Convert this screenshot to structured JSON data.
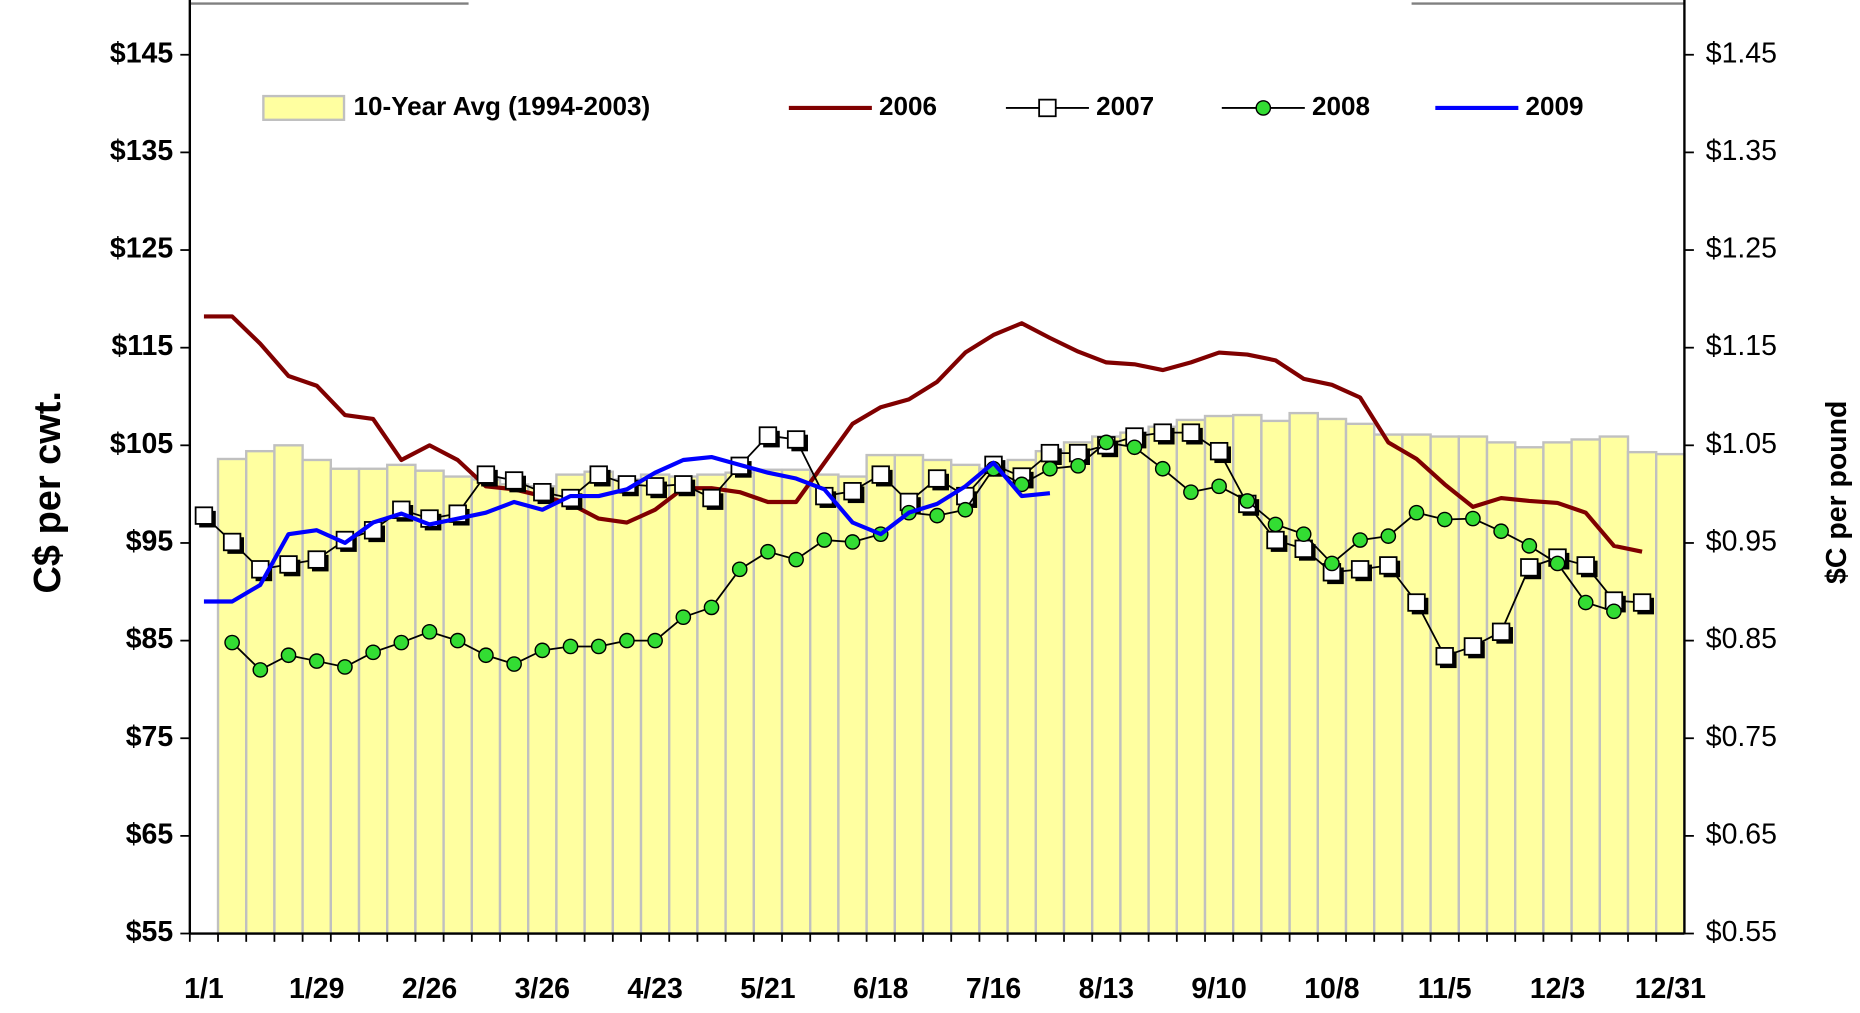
{
  "chart_data": {
    "type": "combo",
    "y_label": "C$ per cwt.",
    "y2_label": "$C per pound",
    "categories": [
      "1/1",
      null,
      null,
      null,
      "1/29",
      null,
      null,
      null,
      "2/26",
      null,
      null,
      null,
      "3/26",
      null,
      null,
      null,
      "4/23",
      null,
      null,
      null,
      "5/21",
      null,
      null,
      null,
      "6/18",
      null,
      null,
      null,
      "7/16",
      null,
      null,
      null,
      "8/13",
      null,
      null,
      null,
      "9/10",
      null,
      null,
      null,
      "10/8",
      null,
      null,
      null,
      "11/5",
      null,
      null,
      null,
      "12/3",
      null,
      null,
      null,
      "12/31"
    ],
    "ylim": [
      55,
      150
    ],
    "yticks": [
      {
        "value": 55,
        "label": "$55"
      },
      {
        "value": 65,
        "label": "$65"
      },
      {
        "value": 75,
        "label": "$75"
      },
      {
        "value": 85,
        "label": "$85"
      },
      {
        "value": 95,
        "label": "$95"
      },
      {
        "value": 105,
        "label": "$105"
      },
      {
        "value": 115,
        "label": "$115"
      },
      {
        "value": 125,
        "label": "$125"
      },
      {
        "value": 135,
        "label": "$135"
      },
      {
        "value": 145,
        "label": "$145"
      }
    ],
    "y2lim": [
      0.55,
      1.5
    ],
    "y2ticks": [
      {
        "value": 0.55,
        "label": "$0.55"
      },
      {
        "value": 0.65,
        "label": "$0.65"
      },
      {
        "value": 0.75,
        "label": "$0.75"
      },
      {
        "value": 0.85,
        "label": "$0.85"
      },
      {
        "value": 0.95,
        "label": "$0.95"
      },
      {
        "value": 1.05,
        "label": "$1.05"
      },
      {
        "value": 1.15,
        "label": "$1.15"
      },
      {
        "value": 1.25,
        "label": "$1.25"
      },
      {
        "value": 1.35,
        "label": "$1.35"
      },
      {
        "value": 1.45,
        "label": "$1.45"
      }
    ],
    "legend": "top",
    "series": [
      {
        "name": "10-Year Avg (1994-2003)",
        "type": "bar",
        "color": "#ffffa0",
        "edge_color": "#c0c0c0",
        "values": [
          null,
          103.6,
          104.4,
          105,
          103.5,
          102.6,
          102.6,
          103,
          102.4,
          101.8,
          101.5,
          101,
          100.8,
          102,
          102.3,
          101.5,
          102,
          101.8,
          102,
          102.2,
          102.5,
          102.5,
          102,
          101.8,
          104,
          104,
          103.5,
          103,
          102.6,
          103.5,
          104.4,
          105.3,
          105.9,
          106.3,
          106.9,
          107.6,
          108,
          108.1,
          107.5,
          108.3,
          107.7,
          107.2,
          106.1,
          106.1,
          105.9,
          105.9,
          105.3,
          104.8,
          105.3,
          105.6,
          105.9,
          104.3,
          104.1
        ]
      },
      {
        "name": "2006",
        "type": "line",
        "color": "#800000",
        "values": [
          118.2,
          118.2,
          115.4,
          112.1,
          111.1,
          108.1,
          107.7,
          103.5,
          105,
          103.5,
          100.8,
          100.5,
          99.8,
          99,
          97.5,
          97.1,
          98.4,
          100.6,
          100.6,
          100.2,
          99.2,
          99.2,
          103.2,
          107.2,
          108.9,
          109.7,
          111.5,
          114.5,
          116.3,
          117.5,
          116,
          114.6,
          113.5,
          113.3,
          112.7,
          113.5,
          114.5,
          114.3,
          113.7,
          111.8,
          111.2,
          109.9,
          105.3,
          103.6,
          101,
          98.7,
          99.6,
          99.3,
          99.1,
          98.1,
          94.7,
          94.1,
          null
        ]
      },
      {
        "name": "2007",
        "type": "line",
        "marker": "square",
        "color": "#000000",
        "values": [
          97.8,
          95.1,
          92.3,
          92.8,
          93.3,
          95.3,
          96.3,
          98.4,
          97.5,
          98,
          102,
          101.4,
          100.2,
          99.6,
          102,
          101,
          100.8,
          101,
          99.6,
          102.9,
          106,
          105.6,
          99.8,
          100.3,
          102,
          99.2,
          101.6,
          99.8,
          103,
          101.8,
          104.2,
          104.2,
          105,
          105.9,
          106.3,
          106.3,
          104.4,
          99,
          95.3,
          94.4,
          92,
          92.3,
          92.7,
          88.9,
          83.4,
          84.4,
          85.9,
          92.5,
          93.5,
          92.7,
          89.1,
          88.9,
          null
        ]
      },
      {
        "name": "2008",
        "type": "line",
        "marker": "circle",
        "color": "#000000",
        "marker_color": "#33dd33",
        "values": [
          null,
          84.8,
          82,
          83.5,
          82.9,
          82.3,
          83.8,
          84.8,
          85.9,
          85,
          83.5,
          82.6,
          84,
          84.4,
          84.4,
          85,
          85,
          87.4,
          88.4,
          92.3,
          94.1,
          93.3,
          95.3,
          95.1,
          95.9,
          98.1,
          97.8,
          98.4,
          102.6,
          101,
          102.6,
          102.9,
          105.3,
          104.8,
          102.6,
          100.2,
          100.8,
          99.3,
          96.9,
          95.9,
          92.9,
          95.3,
          95.7,
          98.1,
          97.4,
          97.5,
          96.2,
          94.7,
          92.9,
          88.9,
          88,
          null,
          null
        ]
      },
      {
        "name": "2009",
        "type": "line",
        "color": "#0000ff",
        "values": [
          89,
          89,
          90.7,
          95.9,
          96.3,
          95,
          97.1,
          98,
          96.9,
          97.5,
          98.1,
          99.2,
          98.4,
          99.8,
          99.8,
          100.5,
          102.2,
          103.5,
          103.8,
          103,
          102.2,
          101.6,
          100.5,
          97.1,
          95.9,
          98.1,
          99,
          100.8,
          103.2,
          99.8,
          100.1,
          null,
          null,
          null,
          null,
          null,
          null,
          null,
          null,
          null,
          null,
          null,
          null,
          null,
          null,
          null,
          null,
          null,
          null,
          null,
          null,
          null,
          null
        ]
      }
    ]
  }
}
